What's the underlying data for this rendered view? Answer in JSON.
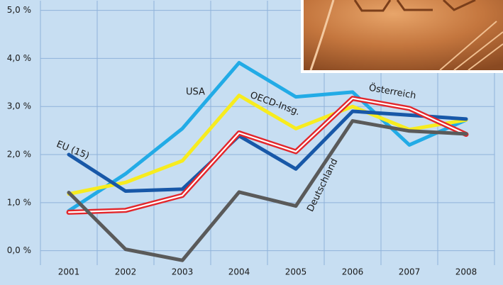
{
  "chart_data": {
    "type": "line",
    "categories": [
      "2001",
      "2002",
      "2003",
      "2004",
      "2005",
      "2006",
      "2007",
      "2008"
    ],
    "ylim": [
      -0.3,
      5.2
    ],
    "yticks": [
      {
        "value": 0,
        "label": "0,0 %"
      },
      {
        "value": 1,
        "label": "1,0 %"
      },
      {
        "value": 2,
        "label": "2,0 %"
      },
      {
        "value": 3,
        "label": "3,0 %"
      },
      {
        "value": 4,
        "label": "4,0 %"
      },
      {
        "value": 5,
        "label": "5,0 %"
      }
    ],
    "grid": true,
    "series": [
      {
        "name": "USA",
        "color": "#22abe6",
        "values": [
          0.83,
          1.6,
          2.54,
          3.91,
          3.2,
          3.3,
          2.2,
          2.72
        ]
      },
      {
        "name": "OECD-Insg.",
        "color": "#f7ec1f",
        "values": [
          1.18,
          1.42,
          1.87,
          3.23,
          2.54,
          3.0,
          2.52,
          2.72
        ]
      },
      {
        "name": "EU (15)",
        "color": "#1858a8",
        "values": [
          2.0,
          1.24,
          1.28,
          2.39,
          1.7,
          2.9,
          2.82,
          2.74
        ]
      },
      {
        "name": "Österreich",
        "color": "#e3262b",
        "values": [
          0.8,
          0.84,
          1.15,
          2.45,
          2.06,
          3.17,
          2.96,
          2.42
        ]
      },
      {
        "name": "Deutschland",
        "color": "#5a5a5a",
        "values": [
          1.21,
          0.03,
          -0.2,
          1.22,
          0.93,
          2.7,
          2.49,
          2.43
        ]
      }
    ]
  }
}
